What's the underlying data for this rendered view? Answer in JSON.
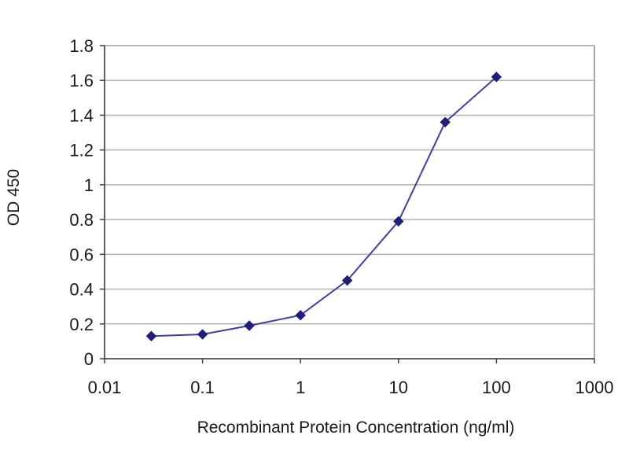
{
  "chart_data": {
    "type": "line",
    "title": "",
    "xlabel": "Recombinant Protein Concentration (ng/ml)",
    "ylabel": "OD 450",
    "x_scale": "log",
    "xlim": [
      0.01,
      1000
    ],
    "ylim": [
      0,
      1.8
    ],
    "x_ticks": [
      0.01,
      0.1,
      1,
      10,
      100,
      1000
    ],
    "x_tick_labels": [
      "0.01",
      "0.1",
      "1",
      "10",
      "100",
      "1000"
    ],
    "y_ticks": [
      0,
      0.2,
      0.4,
      0.6,
      0.8,
      1,
      1.2,
      1.4,
      1.6,
      1.8
    ],
    "y_tick_labels": [
      "0",
      "0.2",
      "0.4",
      "0.6",
      "0.8",
      "1",
      "1.2",
      "1.4",
      "1.6",
      "1.8"
    ],
    "grid": "horizontal",
    "legend": "none",
    "series": [
      {
        "x": [
          0.03,
          0.1,
          0.3,
          1,
          3,
          10,
          30,
          100
        ],
        "y": [
          0.13,
          0.14,
          0.19,
          0.25,
          0.45,
          0.79,
          1.36,
          1.62
        ],
        "color": "#1f1f7a",
        "marker": "diamond"
      }
    ],
    "colors": {
      "plot_background": "#ffffff",
      "plot_border": "#8c8c8c",
      "gridline": "#b3b3b3",
      "axis": "#404040",
      "series_line": "#4040a0",
      "series_marker": "#1f1f7a"
    }
  }
}
